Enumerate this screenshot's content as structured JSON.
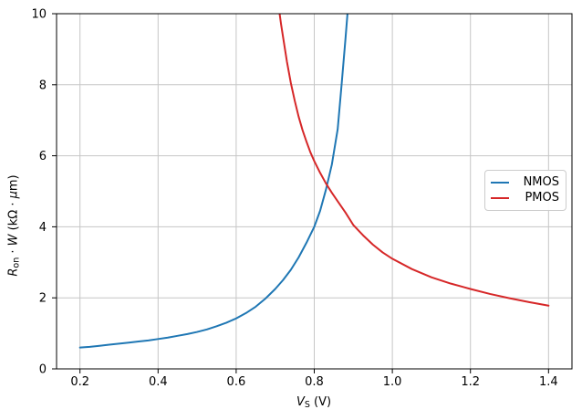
{
  "figure": {
    "background": "#ffffff",
    "xlabel": {
      "variable": "V",
      "subscript": "S",
      "units": " (V)"
    },
    "ylabel": {
      "variable1": "R",
      "subscript1": "on",
      "operator": " · ",
      "variable2": "W",
      "units_open": " (kΩ · ",
      "mu": "μ",
      "units_close": "m)"
    }
  },
  "chart_data": {
    "type": "line",
    "title": "",
    "xlabel": "V_S (V)",
    "ylabel": "R_on · W (kΩ · μm)",
    "xlim": [
      0.14,
      1.46
    ],
    "ylim": [
      0,
      10
    ],
    "xticks": [
      0.2,
      0.4,
      0.6,
      0.8,
      1.0,
      1.2,
      1.4
    ],
    "xtick_labels": [
      "0.2",
      "0.4",
      "0.6",
      "0.8",
      "1.0",
      "1.2",
      "1.4"
    ],
    "yticks": [
      0,
      2,
      4,
      6,
      8,
      10
    ],
    "ytick_labels": [
      "0",
      "2",
      "4",
      "6",
      "8",
      "10"
    ],
    "grid": true,
    "grid_color": "#c6c6c6",
    "spine_color": "#000000",
    "legend": {
      "position": "center right",
      "entries": [
        "NMOS",
        "PMOS"
      ]
    },
    "series": [
      {
        "name": "NMOS",
        "color": "#1f77b4",
        "x": [
          0.2,
          0.225,
          0.25,
          0.275,
          0.3,
          0.325,
          0.35,
          0.375,
          0.4,
          0.425,
          0.45,
          0.475,
          0.5,
          0.525,
          0.55,
          0.575,
          0.6,
          0.625,
          0.65,
          0.675,
          0.7,
          0.72,
          0.74,
          0.76,
          0.78,
          0.8,
          0.815,
          0.83,
          0.845,
          0.86,
          0.87,
          0.88,
          0.888
        ],
        "y": [
          0.6,
          0.62,
          0.65,
          0.68,
          0.71,
          0.74,
          0.77,
          0.8,
          0.84,
          0.88,
          0.93,
          0.98,
          1.04,
          1.11,
          1.2,
          1.3,
          1.42,
          1.57,
          1.75,
          1.98,
          2.25,
          2.5,
          2.79,
          3.14,
          3.55,
          4.0,
          4.45,
          5.05,
          5.75,
          6.75,
          8.0,
          9.3,
          10.4
        ]
      },
      {
        "name": "PMOS",
        "color": "#d62728",
        "x": [
          0.705,
          0.71,
          0.715,
          0.72,
          0.73,
          0.74,
          0.75,
          0.76,
          0.77,
          0.78,
          0.79,
          0.8,
          0.815,
          0.83,
          0.845,
          0.86,
          0.88,
          0.9,
          0.925,
          0.95,
          0.975,
          1.0,
          1.05,
          1.1,
          1.15,
          1.2,
          1.25,
          1.3,
          1.35,
          1.4
        ],
        "y": [
          10.6,
          10.1,
          9.7,
          9.35,
          8.65,
          8.05,
          7.55,
          7.1,
          6.72,
          6.4,
          6.1,
          5.85,
          5.52,
          5.22,
          4.96,
          4.72,
          4.4,
          4.05,
          3.76,
          3.5,
          3.28,
          3.1,
          2.81,
          2.58,
          2.4,
          2.25,
          2.11,
          1.99,
          1.88,
          1.78
        ]
      }
    ]
  }
}
